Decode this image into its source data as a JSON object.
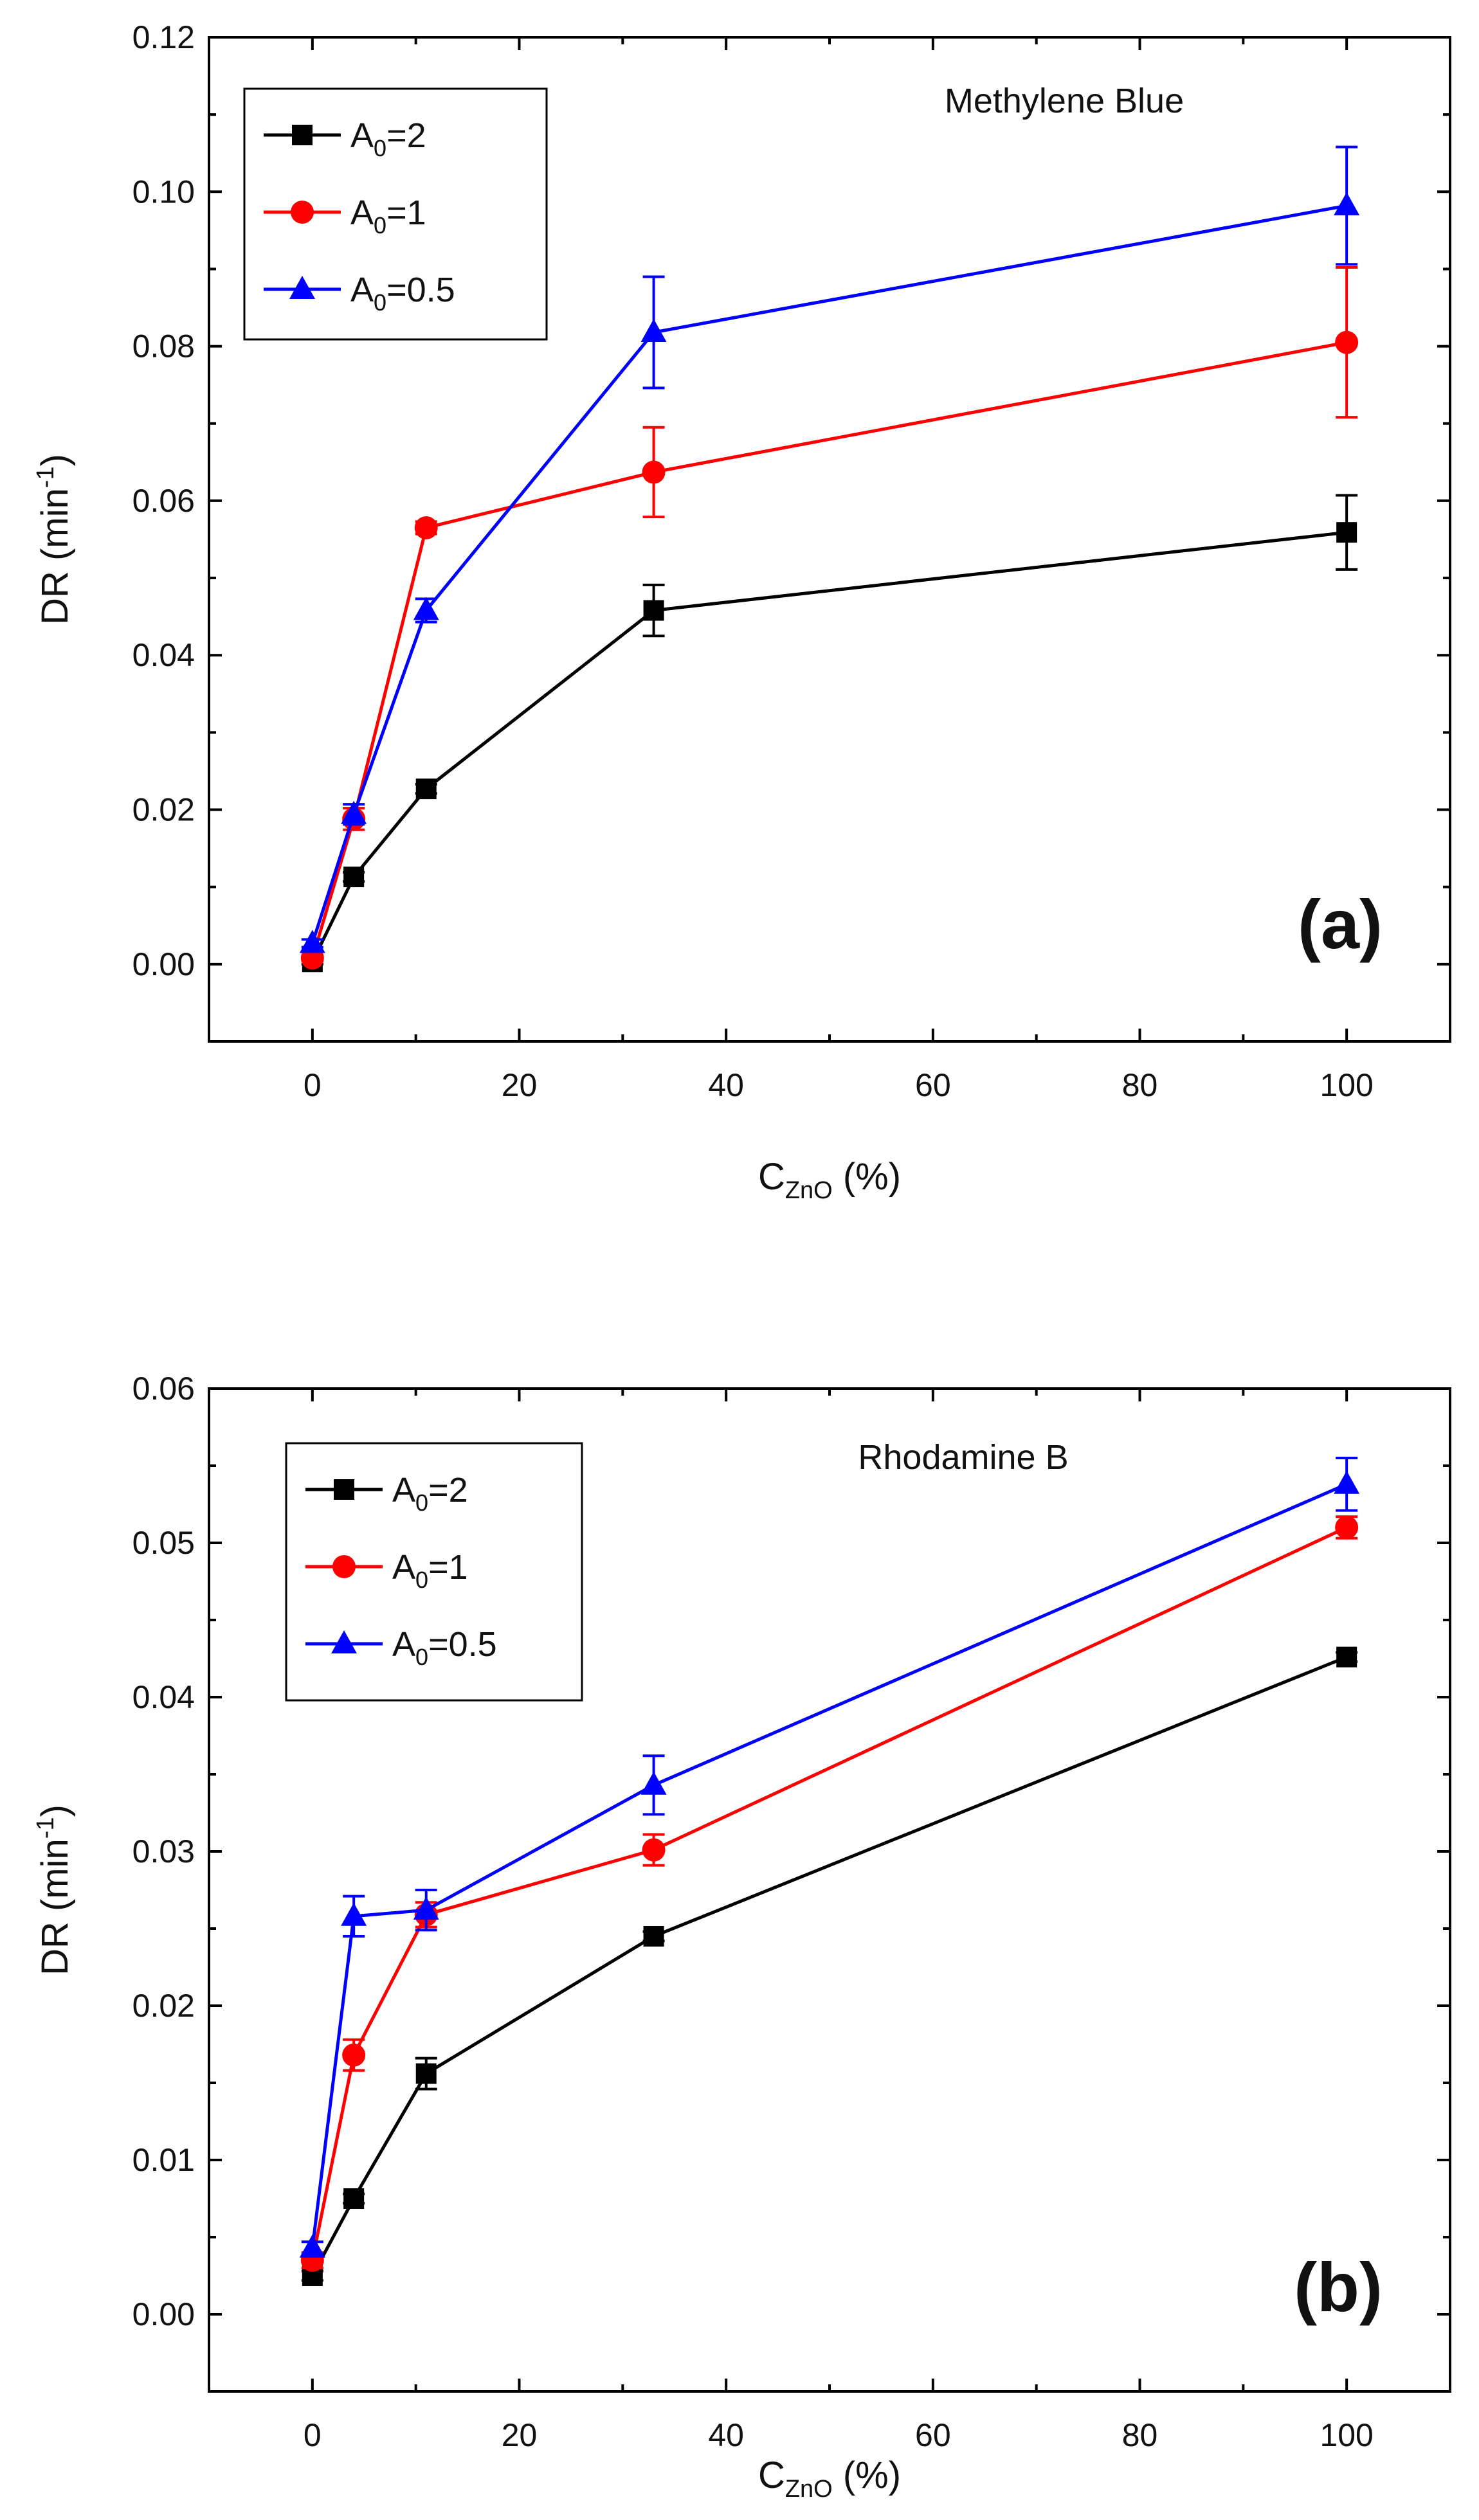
{
  "chart_data": [
    {
      "type": "line",
      "panel_label": "(a)",
      "annotation": "Methylene Blue",
      "xlabel_main": "C",
      "xlabel_sub": "ZnO",
      "xlabel_tail": " (%)",
      "ylabel_main": "DR (min",
      "ylabel_sup": "-1",
      "ylabel_tail": ")",
      "xlim": [
        -10,
        110
      ],
      "ylim": [
        -0.01,
        0.12
      ],
      "xticks": [
        0,
        20,
        40,
        60,
        80,
        100
      ],
      "xtick_labels": [
        "0",
        "20",
        "40",
        "60",
        "80",
        "100"
      ],
      "yticks": [
        0,
        0.02,
        0.04,
        0.06,
        0.08,
        0.1,
        0.12
      ],
      "ytick_labels": [
        "0.00",
        "0.02",
        "0.04",
        "0.06",
        "0.08",
        "0.10",
        "0.12"
      ],
      "legend_position": "top-left",
      "x": [
        0,
        4,
        11,
        33,
        100
      ],
      "series": [
        {
          "name": "A0=2",
          "label_main": "A",
          "label_sub": "0",
          "label_tail": "=2",
          "color": "#000000",
          "marker": "square",
          "values": [
            0.0003,
            0.0113,
            0.0227,
            0.0458,
            0.0559
          ],
          "errors": [
            0.0003,
            0.0006,
            0.0006,
            0.0033,
            0.0048
          ]
        },
        {
          "name": "A0=1",
          "label_main": "A",
          "label_sub": "0",
          "label_tail": "=1",
          "color": "#ff0000",
          "marker": "circle",
          "values": [
            0.0008,
            0.0188,
            0.0565,
            0.0637,
            0.0805
          ],
          "errors": [
            0.0004,
            0.0014,
            0.0008,
            0.0058,
            0.0097
          ]
        },
        {
          "name": "A0=0.5",
          "label_main": "A",
          "label_sub": "0",
          "label_tail": "=0.5",
          "color": "#0000ff",
          "marker": "triangle",
          "values": [
            0.0027,
            0.0194,
            0.0458,
            0.0818,
            0.0982
          ],
          "errors": [
            0.0005,
            0.0013,
            0.0015,
            0.0072,
            0.0076
          ]
        }
      ]
    },
    {
      "type": "line",
      "panel_label": "(b)",
      "annotation": "Rhodamine B",
      "xlabel_main": "C",
      "xlabel_sub": "ZnO",
      "xlabel_tail": " (%)",
      "ylabel_main": "DR (min",
      "ylabel_sup": "-1",
      "ylabel_tail": ")",
      "xlim": [
        -10,
        110
      ],
      "ylim": [
        -0.005,
        0.06
      ],
      "xticks": [
        0,
        20,
        40,
        60,
        80,
        100
      ],
      "xtick_labels": [
        "0",
        "20",
        "40",
        "60",
        "80",
        "100"
      ],
      "yticks": [
        0,
        0.01,
        0.02,
        0.03,
        0.04,
        0.05,
        0.06
      ],
      "ytick_labels": [
        "0.00",
        "0.01",
        "0.02",
        "0.03",
        "0.04",
        "0.05",
        "0.06"
      ],
      "legend_position": "top-left",
      "x": [
        0,
        4,
        11,
        33,
        100
      ],
      "series": [
        {
          "name": "A0=2",
          "label_main": "A",
          "label_sub": "0",
          "label_tail": "=2",
          "color": "#000000",
          "marker": "square",
          "values": [
            0.0025,
            0.0075,
            0.0156,
            0.0245,
            0.0426
          ],
          "errors": [
            0.0003,
            0.0003,
            0.001,
            0.0003,
            0.0003
          ]
        },
        {
          "name": "A0=1",
          "label_main": "A",
          "label_sub": "0",
          "label_tail": "=1",
          "color": "#ff0000",
          "marker": "circle",
          "values": [
            0.0035,
            0.0168,
            0.0259,
            0.0301,
            0.051
          ],
          "errors": [
            0.0005,
            0.001,
            0.0008,
            0.001,
            0.0007
          ]
        },
        {
          "name": "A0=0.5",
          "label_main": "A",
          "label_sub": "0",
          "label_tail": "=0.5",
          "color": "#0000ff",
          "marker": "triangle",
          "values": [
            0.0043,
            0.0258,
            0.0262,
            0.0343,
            0.0538
          ],
          "errors": [
            0.0004,
            0.0013,
            0.0013,
            0.0019,
            0.0017
          ]
        }
      ]
    }
  ]
}
